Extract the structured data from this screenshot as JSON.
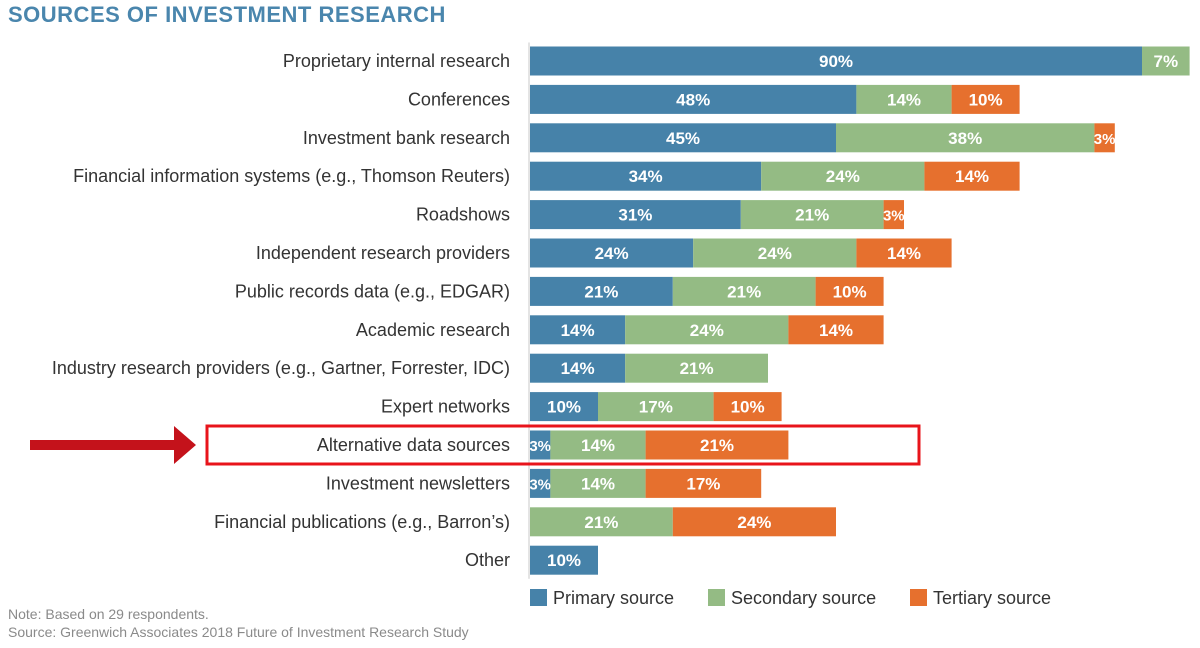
{
  "title": "SOURCES OF INVESTMENT RESEARCH",
  "note": "Note: Based on 29 respondents.",
  "source": "Source: Greenwich Associates 2018 Future of Investment Research Study",
  "highlight_label": "Alternative data sources",
  "colors": {
    "primary": "#4682a9",
    "secondary": "#94bb84",
    "tertiary": "#e6702e",
    "highlight": "#e8141b",
    "arrow": "#c4121b",
    "label_text": "#333333",
    "title": "#4a86ad",
    "notes": "#8a8a8a"
  },
  "chart_data": {
    "type": "bar",
    "orientation": "horizontal",
    "stacked": true,
    "title": "SOURCES OF INVESTMENT RESEARCH",
    "xlabel": "",
    "ylabel": "",
    "xlim": [
      0,
      100
    ],
    "grid": false,
    "legend_position": "bottom",
    "categories": [
      "Proprietary internal research",
      "Conferences",
      "Investment bank research",
      "Financial information systems (e.g., Thomson Reuters)",
      "Roadshows",
      "Independent research providers",
      "Public records data (e.g., EDGAR)",
      "Academic research",
      "Industry research providers (e.g., Gartner, Forrester, IDC)",
      "Expert networks",
      "Alternative data sources",
      "Investment newsletters",
      "Financial publications (e.g., Barron’s)",
      "Other"
    ],
    "series": [
      {
        "name": "Primary source",
        "color": "#4682a9",
        "values": [
          90,
          48,
          45,
          34,
          31,
          24,
          21,
          14,
          14,
          10,
          3,
          3,
          0,
          10
        ]
      },
      {
        "name": "Secondary source",
        "color": "#94bb84",
        "values": [
          7,
          14,
          38,
          24,
          21,
          24,
          21,
          24,
          21,
          17,
          14,
          14,
          21,
          0
        ]
      },
      {
        "name": "Tertiary source",
        "color": "#e6702e",
        "values": [
          0,
          10,
          3,
          14,
          3,
          14,
          10,
          14,
          0,
          10,
          21,
          17,
          24,
          0
        ]
      }
    ]
  }
}
